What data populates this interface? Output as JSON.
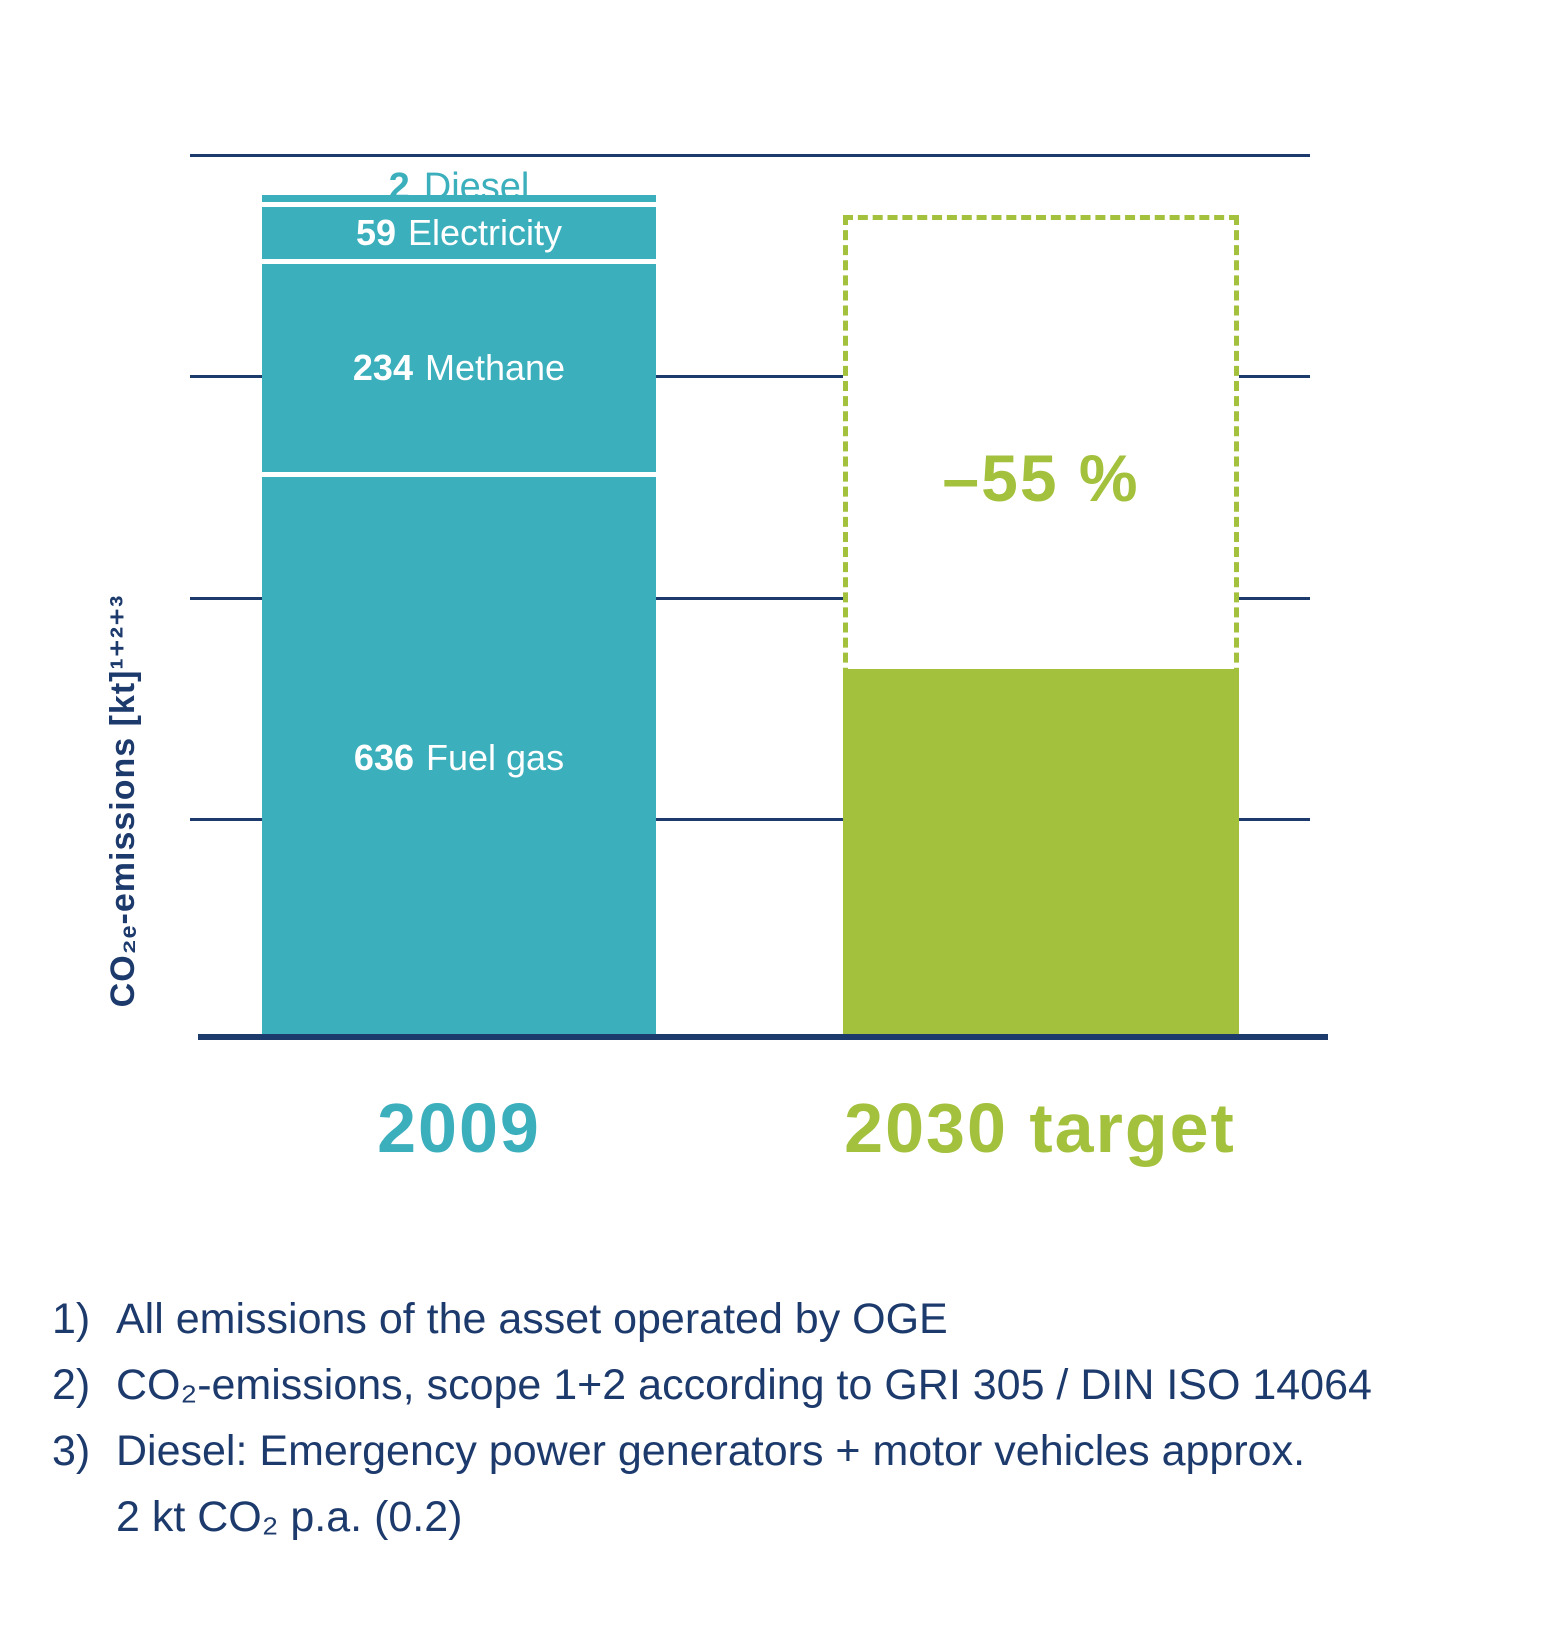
{
  "colors": {
    "teal": "#3BAFBC",
    "green": "#A3C13C",
    "navy": "#1D3A6D"
  },
  "chart_data": {
    "type": "bar",
    "title": "",
    "ylabel": "CO₂ₑ-emissions [kt]¹⁺²⁺³",
    "ylim": [
      0,
      1000
    ],
    "gridline_step_kt": 250,
    "grid": true,
    "legend_position": "none",
    "categories": [
      "2009",
      "2030 target"
    ],
    "bars": [
      {
        "category": "2009",
        "total_kt": 931,
        "segments": [
          {
            "label": "Fuel gas",
            "value": 636
          },
          {
            "label": "Methane",
            "value": 234
          },
          {
            "label": "Electricity",
            "value": 59
          },
          {
            "label": "Diesel",
            "value": 2
          }
        ]
      },
      {
        "category": "2030 target",
        "value": 419,
        "reference_outline_kt": 931,
        "reduction_label": "–55 %"
      }
    ]
  },
  "footnotes": [
    {
      "marker": "1)",
      "text": "All emissions of the asset operated by OGE"
    },
    {
      "marker": "2)",
      "text": "CO₂-emissions, scope 1+2 according to GRI 305 / DIN ISO 14064"
    },
    {
      "marker": "3)",
      "text": "Diesel: Emergency power generators + motor vehicles approx."
    },
    {
      "marker": "",
      "text": "2 kt CO₂ p.a. (0.2)"
    }
  ]
}
